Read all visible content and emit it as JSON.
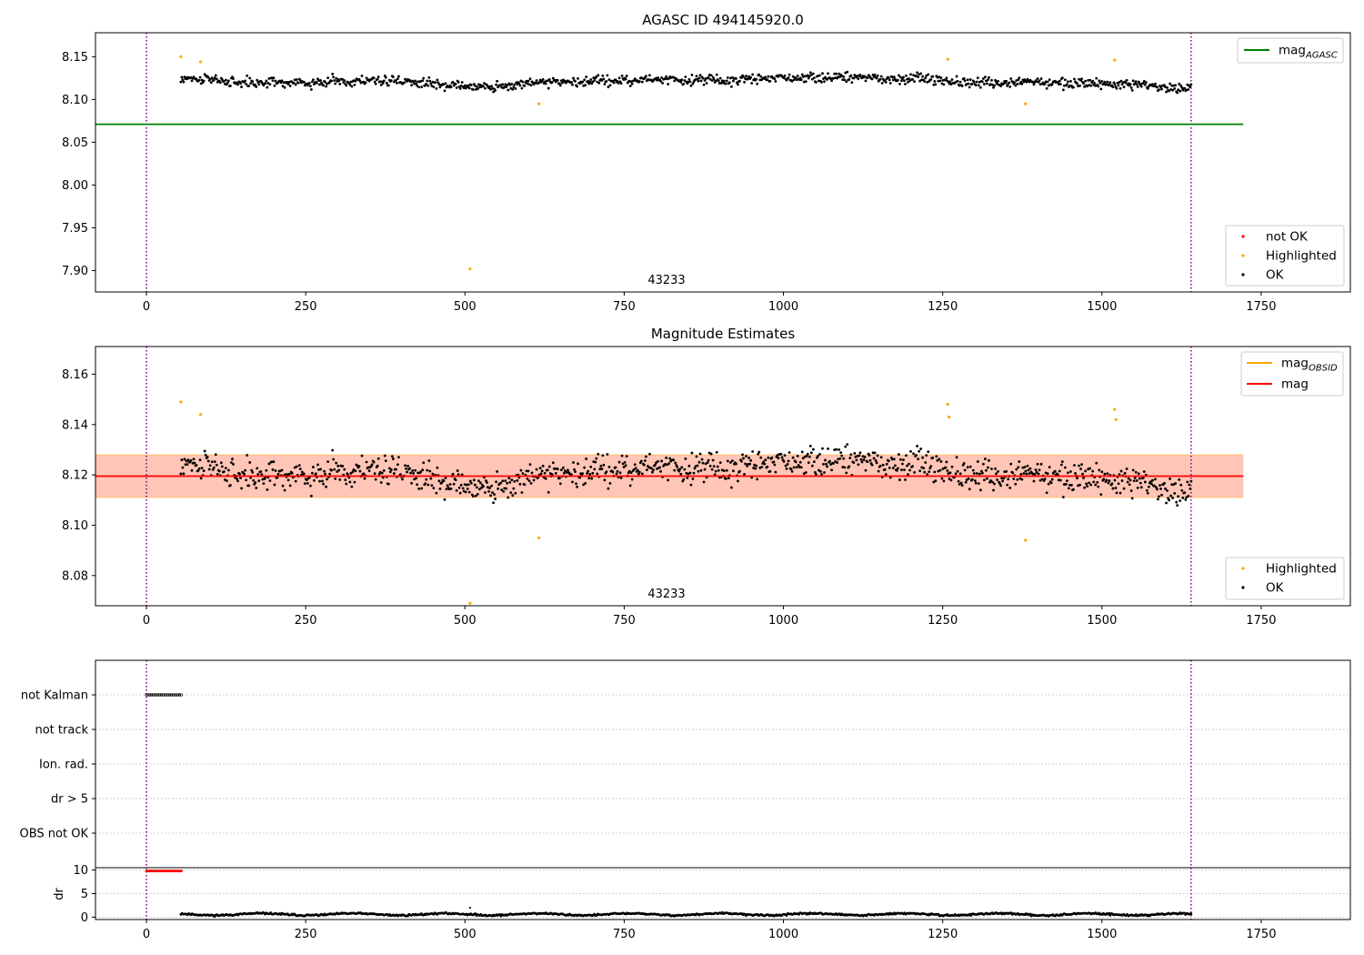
{
  "figure": {
    "top_title": "AGASC ID 494145920.0",
    "middle_title": "Magnitude Estimates",
    "obsid_label_top": "43233",
    "obsid_label_middle": "43233"
  },
  "colors": {
    "ok": "#000000",
    "highlighted": "#ffa500",
    "not_ok": "#ff0000",
    "agasc_line": "#008000",
    "mag_line": "#ff0000",
    "band_fill": "#ffa07a",
    "band_outer": "#ffc0cb",
    "obs_boundary": "#800080",
    "grid": "#b0b0b0"
  },
  "chart_data": [
    {
      "type": "scatter",
      "title": "AGASC ID 494145920.0",
      "x_ticks": [
        "0",
        "250",
        "500",
        "750",
        "1000",
        "1250",
        "1500",
        "1750"
      ],
      "y_ticks": [
        "7.90",
        "7.95",
        "8.00",
        "8.05",
        "8.10",
        "8.15"
      ],
      "xlim": [
        -80,
        1890
      ],
      "ylim": [
        7.875,
        8.178
      ],
      "hlines": [
        {
          "name": "mag_AGASC",
          "y": 8.071,
          "x_range": [
            -80,
            1722
          ]
        }
      ],
      "vlines": [
        0,
        1640
      ],
      "ok_series": {
        "x_range": [
          54,
          1640
        ],
        "center": 8.12,
        "spread": 0.009
      },
      "highlighted_points": [
        [
          54,
          8.15
        ],
        [
          85,
          8.144
        ],
        [
          508,
          7.902
        ],
        [
          616,
          8.095
        ],
        [
          1258,
          8.147
        ],
        [
          1380,
          8.095
        ],
        [
          1520,
          8.146
        ]
      ],
      "legend_lines": [
        {
          "label": "mag",
          "sub": "AGASC",
          "color": "#008000"
        }
      ],
      "legend_points": [
        {
          "label": "not OK",
          "color": "#ff0000"
        },
        {
          "label": "Highlighted",
          "color": "#ffa500"
        },
        {
          "label": "OK",
          "color": "#000000"
        }
      ]
    },
    {
      "type": "scatter",
      "title": "Magnitude Estimates",
      "x_ticks": [
        "0",
        "250",
        "500",
        "750",
        "1000",
        "1250",
        "1500",
        "1750"
      ],
      "y_ticks": [
        "8.08",
        "8.10",
        "8.12",
        "8.14",
        "8.16"
      ],
      "xlim": [
        -80,
        1890
      ],
      "ylim": [
        8.068,
        8.171
      ],
      "hlines": [
        {
          "name": "mag",
          "y": 8.1195,
          "x_range": [
            -80,
            1722
          ]
        }
      ],
      "band": {
        "inner": [
          8.111,
          8.128
        ],
        "x_range": [
          -80,
          1722
        ]
      },
      "vlines": [
        0,
        1640
      ],
      "ok_series": {
        "x_range": [
          54,
          1640
        ],
        "center": 8.12,
        "spread": 0.009
      },
      "highlighted_points": [
        [
          54,
          8.149
        ],
        [
          85,
          8.144
        ],
        [
          508,
          8.069
        ],
        [
          616,
          8.095
        ],
        [
          1258,
          8.148
        ],
        [
          1260,
          8.143
        ],
        [
          1380,
          8.094
        ],
        [
          1520,
          8.146
        ],
        [
          1522,
          8.142
        ]
      ],
      "legend_lines": [
        {
          "label": "mag",
          "sub": "OBSID",
          "color": "#ffa500"
        },
        {
          "label": "mag",
          "sub": "",
          "color": "#ff0000"
        }
      ],
      "legend_points": [
        {
          "label": "Highlighted",
          "color": "#ffa500"
        },
        {
          "label": "OK",
          "color": "#000000"
        }
      ]
    },
    {
      "type": "scatter",
      "title": "",
      "flag_rows": [
        "not Kalman",
        "not track",
        "Ion. rad.",
        "dr > 5",
        "OBS not OK"
      ],
      "flag_segments": [
        {
          "row": "not Kalman",
          "x_range": [
            0,
            55
          ]
        }
      ],
      "x_ticks": [
        "0",
        "250",
        "500",
        "750",
        "1000",
        "1250",
        "1500",
        "1750"
      ],
      "xlim": [
        -80,
        1890
      ],
      "vlines": [
        0,
        1640
      ]
    },
    {
      "type": "scatter",
      "title": "",
      "ylabel": "dr",
      "y_ticks": [
        "0",
        "5",
        "10"
      ],
      "x_ticks": [
        "0",
        "250",
        "500",
        "750",
        "1000",
        "1250",
        "1500",
        "1750"
      ],
      "xlim": [
        -80,
        1890
      ],
      "ylim": [
        -0.5,
        10.5
      ],
      "red_segment": {
        "x_range": [
          0,
          55
        ],
        "y": 9.8
      },
      "ok_series": {
        "x_range": [
          54,
          1640
        ],
        "center": 0.6,
        "spread": 0.25
      },
      "outliers": [
        [
          508,
          2.0
        ]
      ],
      "vlines": [
        0,
        1640
      ]
    }
  ]
}
